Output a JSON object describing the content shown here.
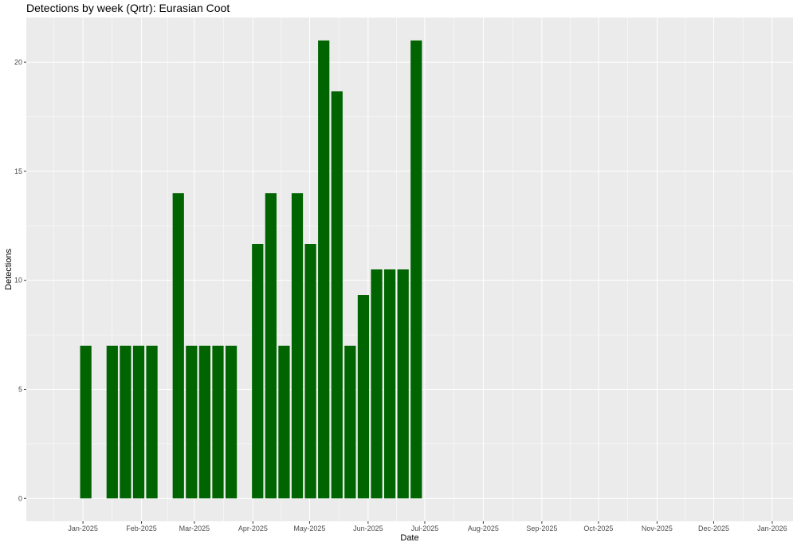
{
  "chart_data": {
    "type": "bar",
    "title": "Detections by week (Qrtr): Eurasian Coot",
    "xlabel": "Date",
    "ylabel": "Detections",
    "x_tick_labels": [
      "Jan-2025",
      "Feb-2025",
      "Mar-2025",
      "Apr-2025",
      "May-2025",
      "Jun-2025",
      "Jul-2025",
      "Aug-2025",
      "Sep-2025",
      "Oct-2025",
      "Nov-2025",
      "Dec-2025",
      "Jan-2026"
    ],
    "y_ticks": [
      0,
      5,
      10,
      15,
      20
    ],
    "ylim": [
      -1.05,
      22.05
    ],
    "xlim": [
      "2024-12-02",
      "2026-01-12"
    ],
    "grid": true,
    "bar_color": "#006400",
    "panel_background": "#ebebeb",
    "bars": [
      {
        "week_start": "2024-12-30",
        "value": 7
      },
      {
        "week_start": "2025-01-13",
        "value": 7
      },
      {
        "week_start": "2025-01-20",
        "value": 7
      },
      {
        "week_start": "2025-01-27",
        "value": 7
      },
      {
        "week_start": "2025-02-03",
        "value": 7
      },
      {
        "week_start": "2025-02-17",
        "value": 14
      },
      {
        "week_start": "2025-02-24",
        "value": 7
      },
      {
        "week_start": "2025-03-03",
        "value": 7
      },
      {
        "week_start": "2025-03-10",
        "value": 7
      },
      {
        "week_start": "2025-03-17",
        "value": 7
      },
      {
        "week_start": "2025-03-31",
        "value": 11.67
      },
      {
        "week_start": "2025-04-07",
        "value": 14
      },
      {
        "week_start": "2025-04-14",
        "value": 7
      },
      {
        "week_start": "2025-04-21",
        "value": 14
      },
      {
        "week_start": "2025-04-28",
        "value": 11.67
      },
      {
        "week_start": "2025-05-05",
        "value": 21
      },
      {
        "week_start": "2025-05-12",
        "value": 18.67
      },
      {
        "week_start": "2025-05-19",
        "value": 7
      },
      {
        "week_start": "2025-05-26",
        "value": 9.33
      },
      {
        "week_start": "2025-06-02",
        "value": 10.5
      },
      {
        "week_start": "2025-06-09",
        "value": 10.5
      },
      {
        "week_start": "2025-06-16",
        "value": 10.5
      },
      {
        "week_start": "2025-06-23",
        "value": 21
      }
    ]
  }
}
